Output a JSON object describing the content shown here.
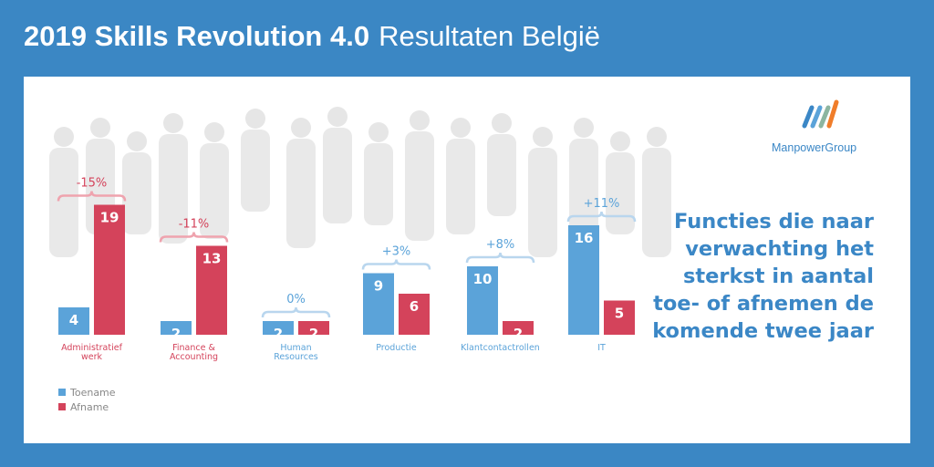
{
  "header": {
    "title_bold": "2019 Skills Revolution 4.0",
    "title_sub": "Resultaten België"
  },
  "logo": {
    "text": "ManpowerGroup"
  },
  "headline": "Functies die naar verwachting het sterkst in aantal toe- of afnemen de komende twee jaar",
  "colors": {
    "background": "#3b87c4",
    "increase": "#5ba3d9",
    "decrease": "#d4435b",
    "brace_increase": "#b9d6ee",
    "brace_decrease": "#efa3ae"
  },
  "chart_data": {
    "type": "bar",
    "categories": [
      "Administratief werk",
      "Finance & Accounting",
      "Human Resources",
      "Productie",
      "Klantcontactrollen",
      "IT"
    ],
    "category_lines": [
      [
        "Administratief",
        "werk"
      ],
      [
        "Finance &",
        "Accounting"
      ],
      [
        "Human",
        "Resources"
      ],
      [
        "Productie"
      ],
      [
        "Klantcontactrollen"
      ],
      [
        "IT"
      ]
    ],
    "series": [
      {
        "name": "Toename",
        "values": [
          4,
          2,
          2,
          9,
          10,
          16
        ]
      },
      {
        "name": "Afname",
        "values": [
          19,
          13,
          2,
          6,
          2,
          5
        ]
      }
    ],
    "net_change": [
      "-15%",
      "-11%",
      "0%",
      "+3%",
      "+8%",
      "+11%"
    ],
    "legend": [
      "Toename",
      "Afname"
    ],
    "legend_position": "bottom-left",
    "grid": false
  }
}
